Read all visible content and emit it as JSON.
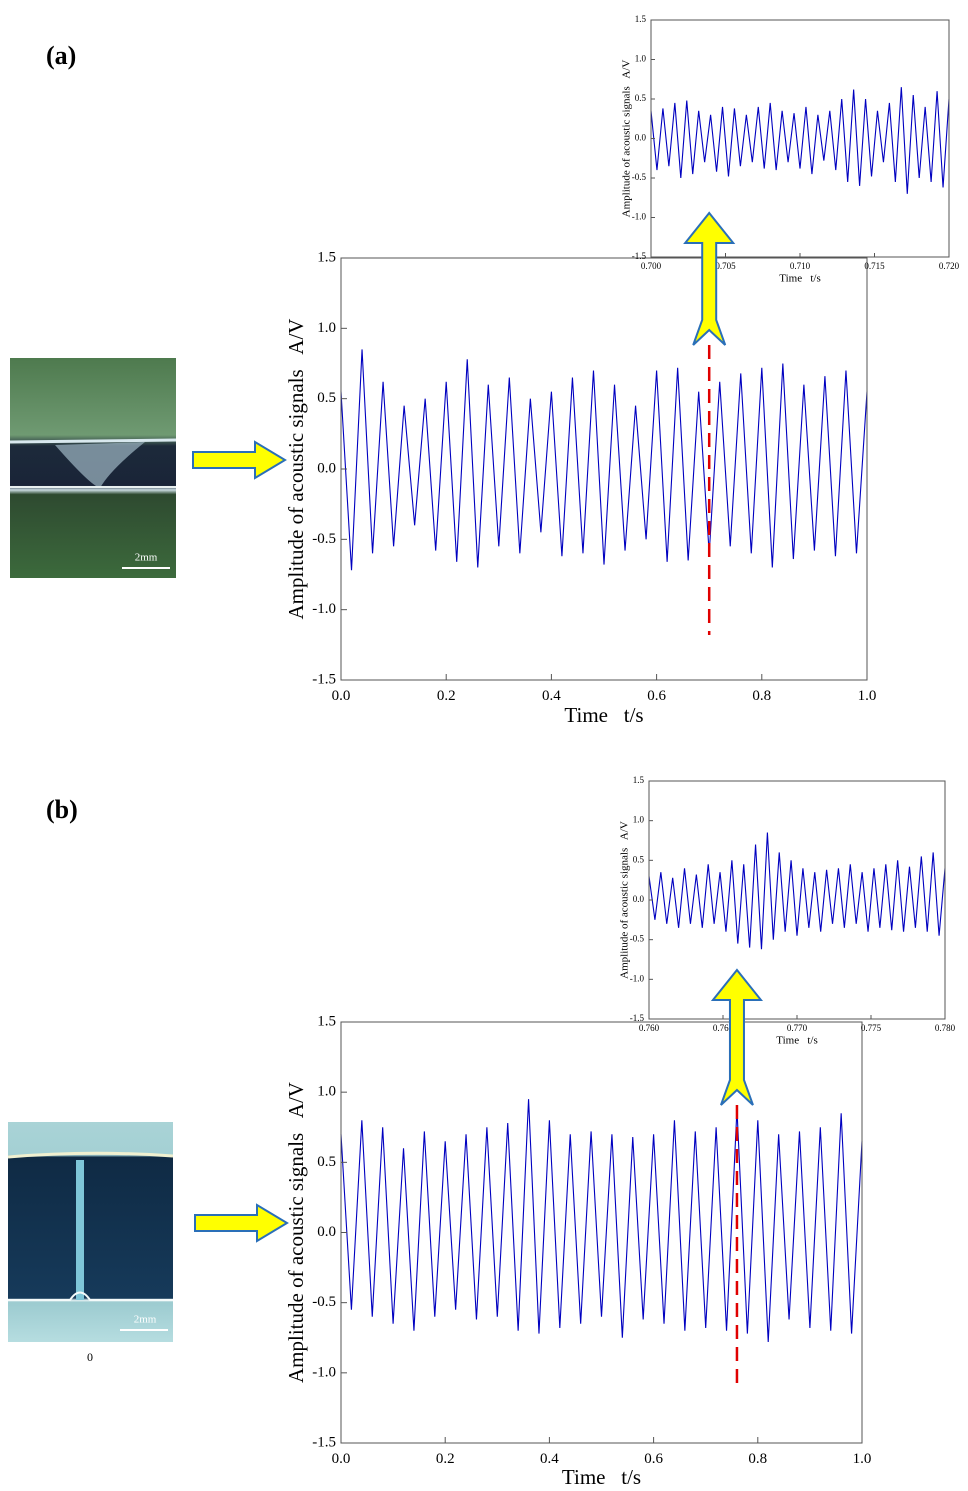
{
  "labels": [
    "(a)",
    "(b)"
  ],
  "photo_texts": [
    "2mm",
    "2mm",
    "0"
  ],
  "chart_data": [
    {
      "type": "line",
      "color": "#0000c0",
      "ylabel": "Amplitude of acoustic signals   A/V",
      "xlabel": "Time   t/s",
      "xlim": [
        0,
        1
      ],
      "ylim": [
        -1.5,
        1.5
      ],
      "xticks": [
        {
          "value": 0,
          "label": "0.0"
        },
        0.2,
        0.4,
        0.6,
        0.8,
        {
          "value": 1,
          "label": "1.0"
        }
      ],
      "yticks": [
        -1.5,
        {
          "value": -1,
          "label": "-1.0"
        },
        -0.5,
        {
          "value": 0,
          "label": "0.0"
        },
        0.5,
        {
          "value": 1,
          "label": "1.0"
        },
        1.5
      ],
      "x": [
        0,
        0.02,
        0.04,
        0.06,
        0.08,
        0.1,
        0.12,
        0.14,
        0.16,
        0.18,
        0.2,
        0.22,
        0.24,
        0.26,
        0.28,
        0.3,
        0.32,
        0.34,
        0.36,
        0.38,
        0.4,
        0.42,
        0.44,
        0.46,
        0.48,
        0.5,
        0.52,
        0.54,
        0.56,
        0.58,
        0.6,
        0.62,
        0.64,
        0.66,
        0.68,
        0.7,
        0.72,
        0.74,
        0.76,
        0.78,
        0.8,
        0.82,
        0.84,
        0.86,
        0.88,
        0.9,
        0.92,
        0.94,
        0.96,
        0.98,
        1
      ],
      "values": [
        0.55,
        -0.72,
        0.85,
        -0.6,
        0.62,
        -0.55,
        0.45,
        -0.4,
        0.5,
        -0.58,
        0.62,
        -0.66,
        0.78,
        -0.7,
        0.6,
        -0.55,
        0.65,
        -0.6,
        0.5,
        -0.45,
        0.55,
        -0.62,
        0.65,
        -0.6,
        0.7,
        -0.68,
        0.6,
        -0.58,
        0.45,
        -0.5,
        0.7,
        -0.66,
        0.72,
        -0.65,
        0.55,
        -0.6,
        0.62,
        -0.55,
        0.68,
        -0.6,
        0.72,
        -0.7,
        0.75,
        -0.64,
        0.6,
        -0.58,
        0.66,
        -0.62,
        0.7,
        -0.6,
        0.55
      ]
    },
    {
      "type": "line",
      "color": "#0000c0",
      "ylabel": "Amplitude of acoustic signals   A/V",
      "xlabel": "Time   t/s",
      "xlim": [
        0.7,
        0.72
      ],
      "ylim": [
        -1.5,
        1.5
      ],
      "xticks": [
        {
          "value": 0.7,
          "label": "0.700"
        },
        {
          "value": 0.705,
          "label": "0.705"
        },
        {
          "value": 0.71,
          "label": "0.710"
        },
        {
          "value": 0.715,
          "label": "0.715"
        },
        {
          "value": 0.72,
          "label": "0.720"
        }
      ],
      "yticks": [
        -1.5,
        {
          "value": -1,
          "label": "-1.0"
        },
        -0.5,
        {
          "value": 0,
          "label": "0.0"
        },
        0.5,
        {
          "value": 1,
          "label": "1.0"
        },
        1.5
      ],
      "x": [
        0.7,
        0.7004,
        0.7008,
        0.7012,
        0.7016,
        0.702,
        0.7024,
        0.7028,
        0.7032,
        0.7036,
        0.704,
        0.7044,
        0.7048,
        0.7052,
        0.7056,
        0.706,
        0.7064,
        0.7068,
        0.7072,
        0.7076,
        0.708,
        0.7084,
        0.7088,
        0.7092,
        0.7096,
        0.71,
        0.7104,
        0.7108,
        0.7112,
        0.7116,
        0.712,
        0.7124,
        0.7128,
        0.7132,
        0.7136,
        0.714,
        0.7144,
        0.7148,
        0.7152,
        0.7156,
        0.716,
        0.7164,
        0.7168,
        0.7172,
        0.7176,
        0.718,
        0.7184,
        0.7188,
        0.7192,
        0.7196,
        0.72
      ],
      "values": [
        0.35,
        -0.4,
        0.38,
        -0.35,
        0.45,
        -0.5,
        0.48,
        -0.45,
        0.35,
        -0.3,
        0.3,
        -0.42,
        0.4,
        -0.48,
        0.38,
        -0.35,
        0.3,
        -0.3,
        0.4,
        -0.38,
        0.45,
        -0.4,
        0.35,
        -0.3,
        0.32,
        -0.38,
        0.4,
        -0.45,
        0.3,
        -0.28,
        0.35,
        -0.4,
        0.5,
        -0.55,
        0.62,
        -0.6,
        0.5,
        -0.48,
        0.35,
        -0.3,
        0.45,
        -0.55,
        0.65,
        -0.7,
        0.55,
        -0.5,
        0.4,
        -0.55,
        0.6,
        -0.62,
        0.5
      ]
    },
    {
      "type": "line",
      "color": "#0000c0",
      "ylabel": "Amplitude of acoustic signals   A/V",
      "xlabel": "Time   t/s",
      "xlim": [
        0,
        1
      ],
      "ylim": [
        -1.5,
        1.5
      ],
      "xticks": [
        {
          "value": 0,
          "label": "0.0"
        },
        0.2,
        0.4,
        0.6,
        0.8,
        {
          "value": 1,
          "label": "1.0"
        }
      ],
      "yticks": [
        -1.5,
        {
          "value": -1,
          "label": "-1.0"
        },
        -0.5,
        {
          "value": 0,
          "label": "0.0"
        },
        0.5,
        {
          "value": 1,
          "label": "1.0"
        },
        1.5
      ],
      "x": [
        0,
        0.02,
        0.04,
        0.06,
        0.08,
        0.1,
        0.12,
        0.14,
        0.16,
        0.18,
        0.2,
        0.22,
        0.24,
        0.26,
        0.28,
        0.3,
        0.32,
        0.34,
        0.36,
        0.38,
        0.4,
        0.42,
        0.44,
        0.46,
        0.48,
        0.5,
        0.52,
        0.54,
        0.56,
        0.58,
        0.6,
        0.62,
        0.64,
        0.66,
        0.68,
        0.7,
        0.72,
        0.74,
        0.76,
        0.78,
        0.8,
        0.82,
        0.84,
        0.86,
        0.88,
        0.9,
        0.92,
        0.94,
        0.96,
        0.98,
        1
      ],
      "values": [
        0.7,
        -0.55,
        0.8,
        -0.6,
        0.75,
        -0.65,
        0.6,
        -0.7,
        0.72,
        -0.6,
        0.65,
        -0.55,
        0.7,
        -0.62,
        0.75,
        -0.6,
        0.78,
        -0.7,
        0.95,
        -0.72,
        0.8,
        -0.68,
        0.7,
        -0.65,
        0.72,
        -0.6,
        0.7,
        -0.75,
        0.68,
        -0.62,
        0.7,
        -0.65,
        0.8,
        -0.7,
        0.72,
        -0.68,
        0.75,
        -0.7,
        0.88,
        -0.72,
        0.8,
        -0.78,
        0.7,
        -0.62,
        0.72,
        -0.68,
        0.75,
        -0.7,
        0.85,
        -0.72,
        0.65
      ]
    },
    {
      "type": "line",
      "color": "#0000c0",
      "ylabel": "Amplitude of acoustic signals   A/V",
      "xlabel": "Time   t/s",
      "xlim": [
        0.76,
        0.78
      ],
      "ylim": [
        -1.5,
        1.5
      ],
      "xticks": [
        {
          "value": 0.76,
          "label": "0.760"
        },
        {
          "value": 0.765,
          "label": "0.765"
        },
        {
          "value": 0.77,
          "label": "0.770"
        },
        {
          "value": 0.775,
          "label": "0.775"
        },
        {
          "value": 0.78,
          "label": "0.780"
        }
      ],
      "yticks": [
        -1.5,
        {
          "value": -1,
          "label": "-1.0"
        },
        -0.5,
        {
          "value": 0,
          "label": "0.0"
        },
        0.5,
        {
          "value": 1,
          "label": "1.0"
        },
        1.5
      ],
      "x": [
        0.76,
        0.7604,
        0.7608,
        0.7612,
        0.7616,
        0.762,
        0.7624,
        0.7628,
        0.7632,
        0.7636,
        0.764,
        0.7644,
        0.7648,
        0.7652,
        0.7656,
        0.766,
        0.7664,
        0.7668,
        0.7672,
        0.7676,
        0.768,
        0.7684,
        0.7688,
        0.7692,
        0.7696,
        0.77,
        0.7704,
        0.7708,
        0.7712,
        0.7716,
        0.772,
        0.7724,
        0.7728,
        0.7732,
        0.7736,
        0.774,
        0.7744,
        0.7748,
        0.7752,
        0.7756,
        0.776,
        0.7764,
        0.7768,
        0.7772,
        0.7776,
        0.778,
        0.7784,
        0.7788,
        0.7792,
        0.7796,
        0.78
      ],
      "values": [
        0.3,
        -0.25,
        0.35,
        -0.3,
        0.28,
        -0.35,
        0.4,
        -0.3,
        0.32,
        -0.35,
        0.45,
        -0.3,
        0.35,
        -0.4,
        0.5,
        -0.55,
        0.45,
        -0.6,
        0.7,
        -0.62,
        0.85,
        -0.5,
        0.6,
        -0.4,
        0.5,
        -0.45,
        0.4,
        -0.35,
        0.35,
        -0.4,
        0.38,
        -0.3,
        0.4,
        -0.35,
        0.45,
        -0.3,
        0.35,
        -0.4,
        0.4,
        -0.35,
        0.45,
        -0.38,
        0.5,
        -0.4,
        0.42,
        -0.35,
        0.55,
        -0.4,
        0.6,
        -0.45,
        0.4
      ]
    }
  ]
}
